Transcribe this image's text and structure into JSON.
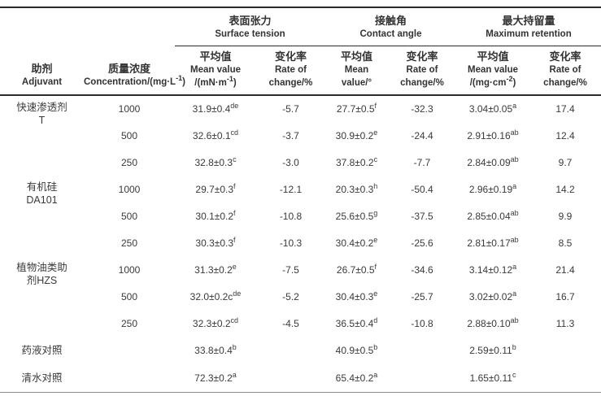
{
  "table": {
    "header": {
      "adjuvant": {
        "zh": "助剂",
        "en": "Adjuvant"
      },
      "concentration": {
        "zh": "质量浓度",
        "en": "Concentration/(mg·L⟨-1⟩)"
      },
      "groups": [
        {
          "zh": "表面张力",
          "en": "Surface tension"
        },
        {
          "zh": "接触角",
          "en": "Contact angle"
        },
        {
          "zh": "最大持留量",
          "en": "Maximum retention"
        }
      ],
      "sub_headers": [
        {
          "zh": "平均值",
          "en1": "Mean value",
          "en2": "/(mN·m⟨-1⟩)"
        },
        {
          "zh": "变化率",
          "en1": "Rate of",
          "en2": "change/%"
        },
        {
          "zh": "平均值",
          "en1": "Mean",
          "en2": "value/°"
        },
        {
          "zh": "变化率",
          "en1": "Rate of",
          "en2": "change/%"
        },
        {
          "zh": "平均值",
          "en1": "Mean value",
          "en2": "/(mg·cm⟨-2⟩)"
        },
        {
          "zh": "变化率",
          "en1": "Rate of",
          "en2": "change/%"
        }
      ]
    },
    "rows": [
      {
        "adjuvant": [
          "快速渗透剂",
          "T"
        ],
        "rowspan": 3,
        "concentration": "1000",
        "values": [
          "31.9±0.4⟨de⟩",
          "-5.7",
          "27.7±0.5⟨f⟩",
          "-32.3",
          "3.04±0.05⟨a⟩",
          "17.4"
        ]
      },
      {
        "concentration": "500",
        "values": [
          "32.6±0.1⟨cd⟩",
          "-3.7",
          "30.9±0.2⟨e⟩",
          "-24.4",
          "2.91±0.16⟨ab⟩",
          "12.4"
        ]
      },
      {
        "concentration": "250",
        "values": [
          "32.8±0.3⟨c⟩",
          "-3.0",
          "37.8±0.2⟨c⟩",
          "-7.7",
          "2.84±0.09⟨ab⟩",
          "9.7"
        ]
      },
      {
        "adjuvant": [
          "有机硅",
          "DA101"
        ],
        "rowspan": 3,
        "concentration": "1000",
        "values": [
          "29.7±0.3⟨f⟩",
          "-12.1",
          "20.3±0.3⟨h⟩",
          "-50.4",
          "2.96±0.19⟨a⟩",
          "14.2"
        ]
      },
      {
        "concentration": "500",
        "values": [
          "30.1±0.2⟨f⟩",
          "-10.8",
          "25.6±0.5⟨g⟩",
          "-37.5",
          "2.85±0.04⟨ab⟩",
          "9.9"
        ]
      },
      {
        "concentration": "250",
        "values": [
          "30.3±0.3⟨f⟩",
          "-10.3",
          "30.4±0.2⟨e⟩",
          "-25.6",
          "2.81±0.17⟨ab⟩",
          "8.5"
        ]
      },
      {
        "adjuvant": [
          "植物油类助",
          "剂HZS"
        ],
        "rowspan": 3,
        "concentration": "1000",
        "values": [
          "31.3±0.2⟨e⟩",
          "-7.5",
          "26.7±0.5⟨f⟩",
          "-34.6",
          "3.14±0.12⟨a⟩",
          "21.4"
        ]
      },
      {
        "concentration": "500",
        "values": [
          "32.0±0.2c⟨de⟩",
          "-5.2",
          "30.4±0.3⟨e⟩",
          "-25.7",
          "3.02±0.02⟨a⟩",
          "16.7"
        ]
      },
      {
        "concentration": "250",
        "values": [
          "32.3±0.2⟨cd⟩",
          "-4.5",
          "36.5±0.4⟨d⟩",
          "-10.8",
          "2.88±0.10⟨ab⟩",
          "11.3"
        ]
      },
      {
        "adjuvant": [
          "药液对照"
        ],
        "rowspan": 1,
        "tall": true,
        "concentration": "",
        "values": [
          "33.8±0.4⟨b⟩",
          "",
          "40.9±0.5⟨b⟩",
          "",
          "2.59±0.11⟨b⟩",
          ""
        ]
      },
      {
        "adjuvant": [
          "清水对照"
        ],
        "rowspan": 1,
        "tall": true,
        "concentration": "",
        "values": [
          "72.3±0.2⟨a⟩",
          "",
          "65.4±0.2⟨a⟩",
          "",
          "1.65±0.11⟨c⟩",
          ""
        ]
      }
    ]
  },
  "colors": {
    "background": "#ffffff",
    "text": "#333333",
    "rule_dark": "#2b2b2b",
    "rule_light": "#8f8f8f"
  }
}
